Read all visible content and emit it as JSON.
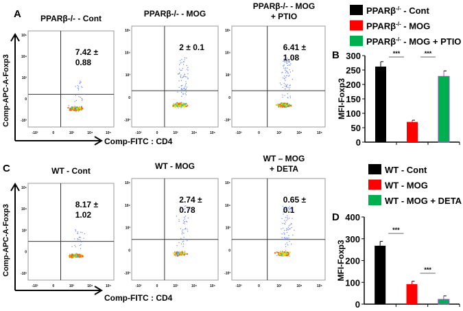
{
  "panels": {
    "a": "A",
    "b": "B",
    "c": "C",
    "d": "D"
  },
  "flow": {
    "ylabel": "Comp-APC-A-Foxp3",
    "xlabel": "Comp-FITC : CD4",
    "top": [
      {
        "title": "PPARβ-/- - Cont",
        "title2": "",
        "value": "7.42 ±",
        "sd": "0.88"
      },
      {
        "title": "PPARβ-/- - MOG",
        "title2": "",
        "value": "2 ± 0.1",
        "sd": ""
      },
      {
        "title": "PPARβ-/- - MOG",
        "title2": "+ PTIO",
        "value": "6.41 ±",
        "sd": "1.08"
      }
    ],
    "bottom": [
      {
        "title": "WT - Cont",
        "title2": "",
        "value": "8.17 ±",
        "sd": "1.02"
      },
      {
        "title": "WT - MOG",
        "title2": "",
        "value": "2.74 ±",
        "sd": "0.78"
      },
      {
        "title": "WT – MOG",
        "title2": "+ DETA",
        "value": "0.65 ±",
        "sd": "0.1"
      }
    ]
  },
  "chart_data": [
    {
      "type": "bar",
      "title": "B",
      "ylabel": "MFI-Foxp3",
      "ylim": [
        0,
        300
      ],
      "yticks": [
        0,
        50,
        100,
        150,
        200,
        250,
        300
      ],
      "categories": [
        "PPARβ-/- - Cont",
        "PPARβ-/- - MOG",
        "PPARβ-/- - MOG + PTIO"
      ],
      "values": [
        262,
        70,
        228
      ],
      "errors": [
        17,
        6,
        19
      ],
      "colors": [
        "#000000",
        "#ff0000",
        "#00b050"
      ],
      "significance": [
        {
          "from": 0,
          "to": 1,
          "label": "***"
        },
        {
          "from": 1,
          "to": 2,
          "label": "***"
        }
      ]
    },
    {
      "type": "bar",
      "title": "D",
      "ylabel": "MFI-Foxp3",
      "ylim": [
        0,
        400
      ],
      "yticks": [
        0,
        100,
        200,
        300,
        400
      ],
      "categories": [
        "WT - Cont",
        "WT - MOG",
        "WT - MOG + DETA"
      ],
      "values": [
        268,
        92,
        22
      ],
      "errors": [
        20,
        13,
        16
      ],
      "colors": [
        "#000000",
        "#ff0000",
        "#00b050"
      ],
      "significance": [
        {
          "from": 0,
          "to": 1,
          "label": "***"
        },
        {
          "from": 1,
          "to": 2,
          "label": "***"
        }
      ]
    }
  ]
}
